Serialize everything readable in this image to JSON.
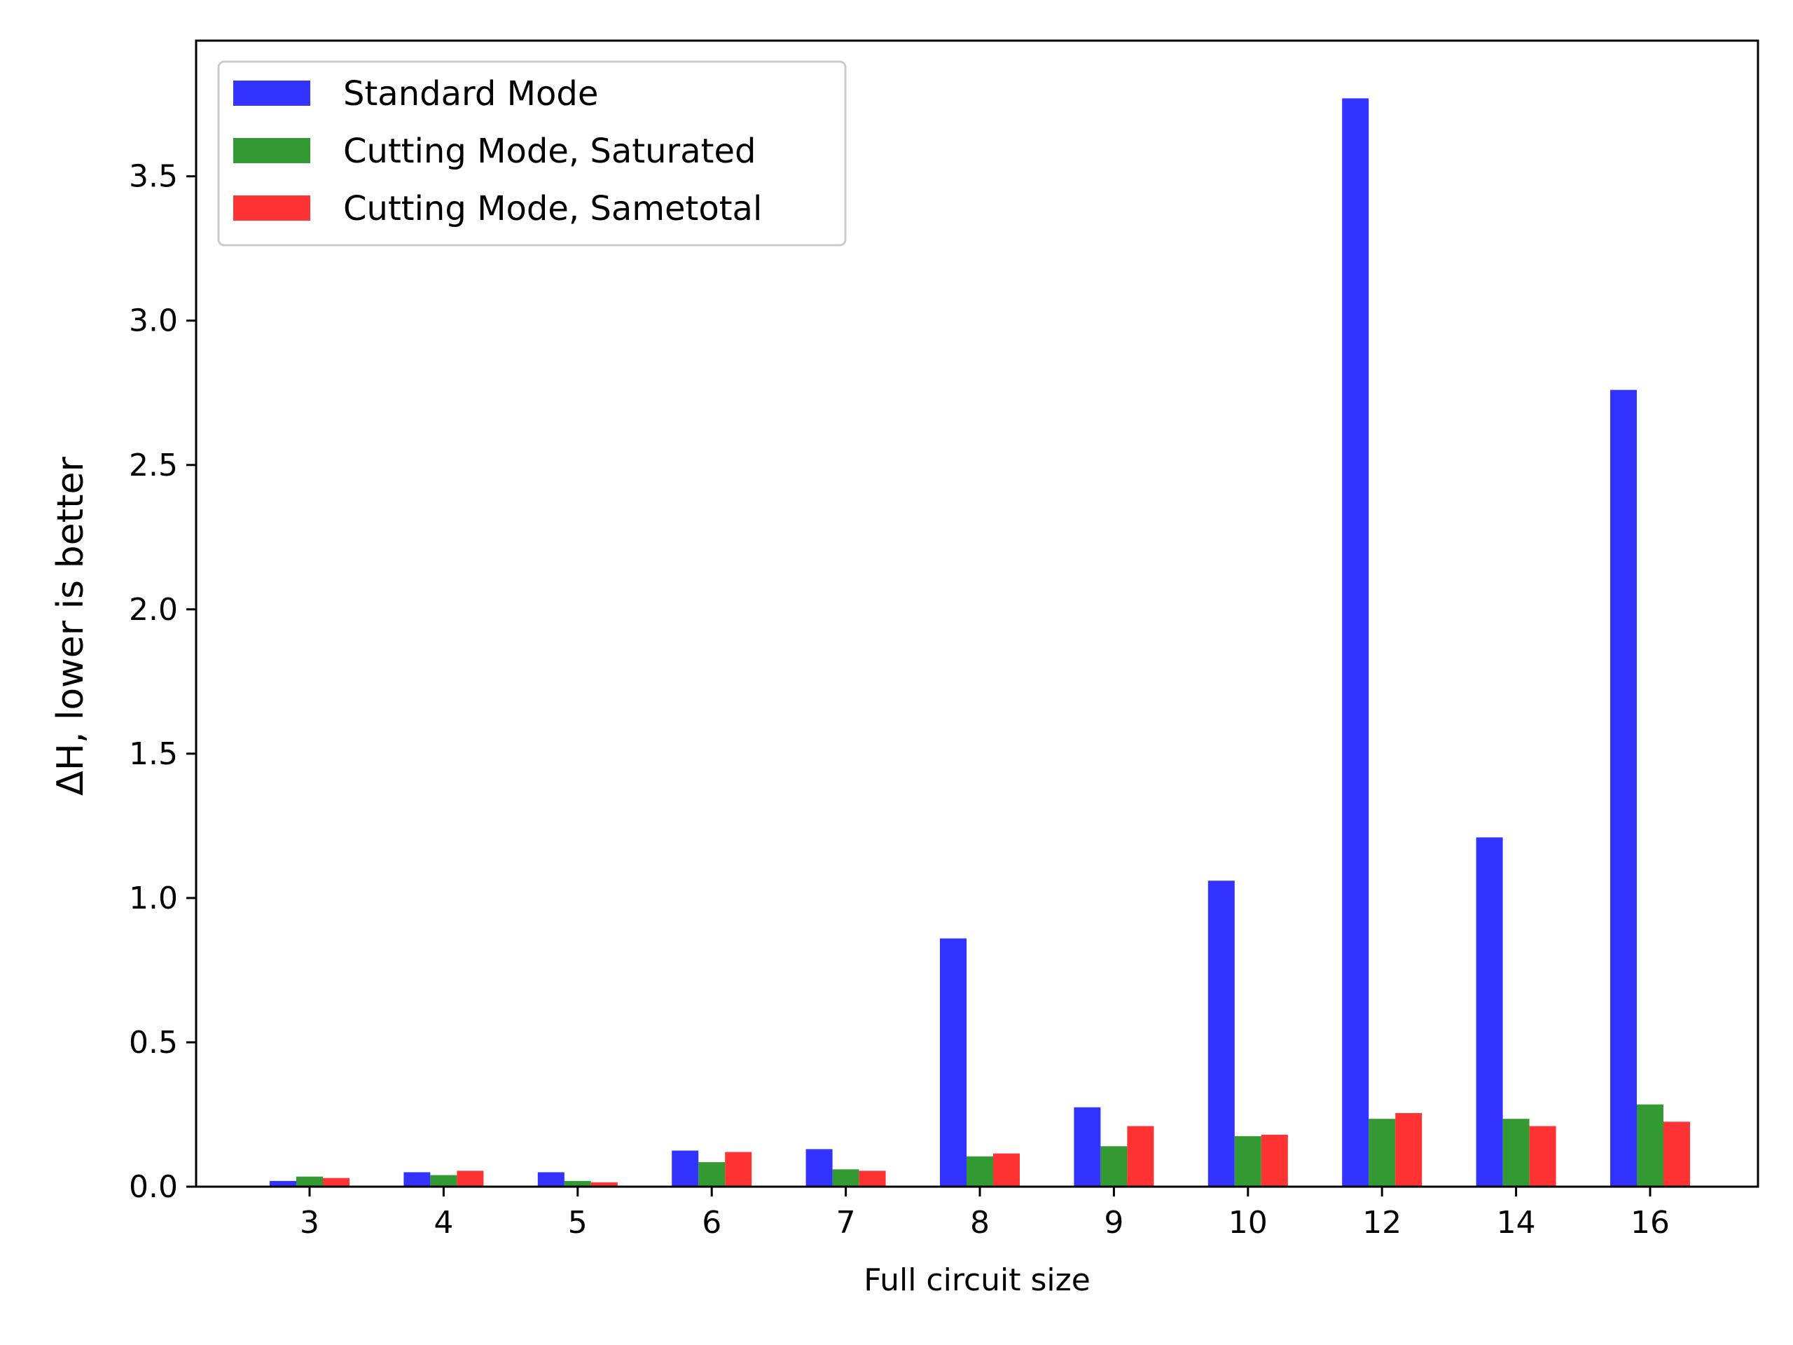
{
  "chart_data": {
    "type": "bar",
    "xlabel": "Full circuit size",
    "ylabel": "ΔH, lower is better",
    "categories": [
      "3",
      "4",
      "5",
      "6",
      "7",
      "8",
      "9",
      "10",
      "12",
      "14",
      "16"
    ],
    "ylim": [
      0,
      3.97
    ],
    "yticks": [
      0.0,
      0.5,
      1.0,
      1.5,
      2.0,
      2.5,
      3.0,
      3.5
    ],
    "ytick_labels": [
      "0.0",
      "0.5",
      "1.0",
      "1.5",
      "2.0",
      "2.5",
      "3.0",
      "3.5"
    ],
    "grid": false,
    "legend_position": "top-left",
    "series": [
      {
        "name": "Standard Mode",
        "color": "#3333ff",
        "values": [
          0.02,
          0.05,
          0.05,
          0.125,
          0.13,
          0.86,
          0.275,
          1.06,
          3.77,
          1.21,
          2.76
        ]
      },
      {
        "name": "Cutting Mode, Saturated",
        "color": "#339933",
        "values": [
          0.035,
          0.04,
          0.02,
          0.085,
          0.06,
          0.105,
          0.14,
          0.175,
          0.235,
          0.235,
          0.285
        ]
      },
      {
        "name": "Cutting Mode, Sametotal",
        "color": "#ff3333",
        "values": [
          0.03,
          0.055,
          0.015,
          0.12,
          0.055,
          0.115,
          0.21,
          0.18,
          0.255,
          0.21,
          0.225
        ]
      }
    ]
  }
}
